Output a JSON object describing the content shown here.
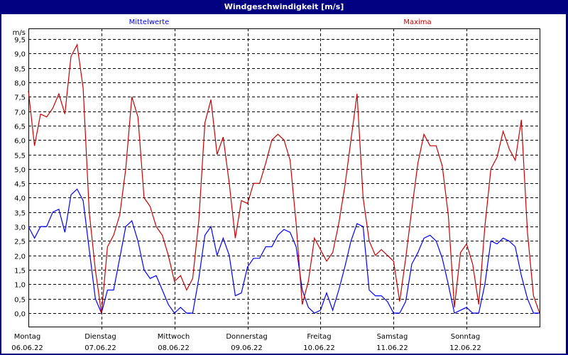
{
  "window": {
    "title": "Windgeschwindigkeit [m/s]",
    "title_bar_color": "#000080"
  },
  "chart_data": {
    "type": "line",
    "title": "Windgeschwindigkeit [m/s]",
    "ylabel": "m/s",
    "ylim": [
      0,
      9.5
    ],
    "y_ticks": [
      "0,0",
      "0,5",
      "1,0",
      "1,5",
      "2,0",
      "2,5",
      "3,0",
      "3,5",
      "4,0",
      "4,5",
      "5,0",
      "5,5",
      "6,0",
      "6,5",
      "7,0",
      "7,5",
      "8,0",
      "8,5",
      "9,0",
      "9,5"
    ],
    "x_ticks": [
      {
        "day": "Montag",
        "date": "06.06.22"
      },
      {
        "day": "Dienstag",
        "date": "07.06.22"
      },
      {
        "day": "Mittwoch",
        "date": "08.06.22"
      },
      {
        "day": "Donnerstag",
        "date": "09.06.22"
      },
      {
        "day": "Freitag",
        "date": "10.06.22"
      },
      {
        "day": "Samstag",
        "date": "11.06.22"
      },
      {
        "day": "Sonntag",
        "date": "12.06.22"
      }
    ],
    "x_range": [
      "06.06.22 00:00",
      "13.06.22 00:00"
    ],
    "x_interval": "2 h",
    "grid": true,
    "series": [
      {
        "name": "Mittelwerte",
        "color": "#0000ff",
        "values": [
          3.0,
          2.6,
          3.0,
          3.0,
          3.5,
          3.6,
          2.8,
          4.1,
          4.3,
          3.9,
          2.2,
          0.5,
          0.0,
          0.8,
          0.8,
          1.9,
          3.0,
          3.2,
          2.5,
          1.5,
          1.2,
          1.3,
          0.8,
          0.3,
          0.0,
          0.2,
          0.0,
          0.0,
          1.2,
          2.7,
          3.0,
          2.0,
          2.6,
          2.0,
          0.6,
          0.7,
          1.6,
          1.9,
          1.9,
          2.3,
          2.3,
          2.7,
          2.9,
          2.8,
          2.3,
          0.8,
          0.2,
          0.0,
          0.1,
          0.7,
          0.1,
          0.8,
          1.6,
          2.5,
          3.1,
          3.0,
          0.8,
          0.6,
          0.6,
          0.4,
          0.0,
          0.0,
          0.4,
          1.7,
          2.1,
          2.6,
          2.7,
          2.5,
          1.9,
          1.0,
          0.0,
          0.1,
          0.2,
          0.0,
          0.0,
          1.0,
          2.5,
          2.4,
          2.6,
          2.5,
          2.3,
          1.3,
          0.5,
          0.0,
          0.0
        ]
      },
      {
        "name": "Maxima",
        "color": "#cc0000",
        "values": [
          7.7,
          5.8,
          6.9,
          6.8,
          7.1,
          7.6,
          6.9,
          8.9,
          9.3,
          7.8,
          3.5,
          1.5,
          0.0,
          2.3,
          2.7,
          3.4,
          5.0,
          7.5,
          6.8,
          4.0,
          3.7,
          3.0,
          2.7,
          2.0,
          1.1,
          1.3,
          0.8,
          1.2,
          3.2,
          6.6,
          7.4,
          5.5,
          6.1,
          4.5,
          2.6,
          3.9,
          3.8,
          4.5,
          4.5,
          5.2,
          6.0,
          6.2,
          6.0,
          5.3,
          3.1,
          0.3,
          1.1,
          2.6,
          2.2,
          1.8,
          2.1,
          3.1,
          4.4,
          6.0,
          7.6,
          4.0,
          2.5,
          2.0,
          2.2,
          2.0,
          1.8,
          0.4,
          1.9,
          3.6,
          5.2,
          6.2,
          5.8,
          5.8,
          5.1,
          3.4,
          0.2,
          2.1,
          2.4,
          1.7,
          0.3,
          3.0,
          5.0,
          5.4,
          6.3,
          5.7,
          5.3,
          6.7,
          2.8,
          0.6,
          0.0
        ]
      }
    ]
  }
}
